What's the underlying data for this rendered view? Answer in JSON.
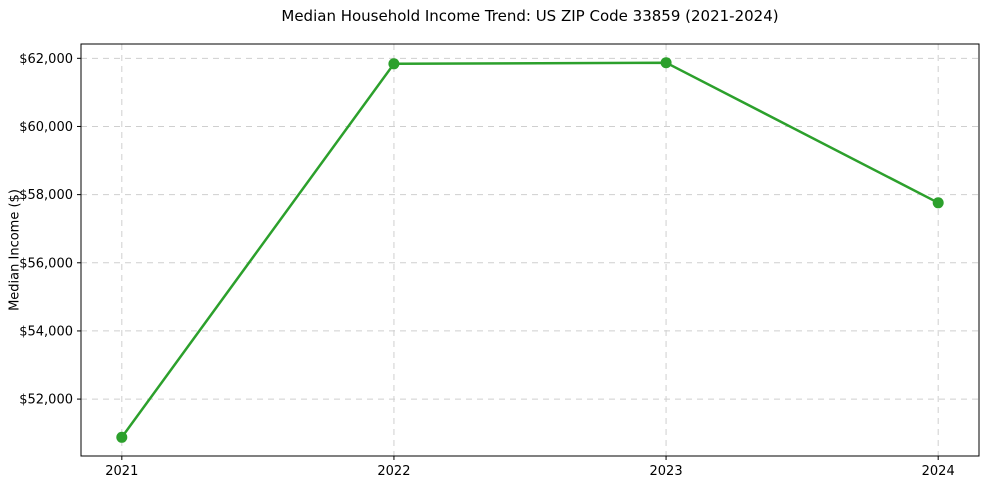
{
  "chart_data": {
    "type": "line",
    "title": "Median Household Income Trend: US ZIP Code 33859 (2021-2024)",
    "xlabel": "",
    "ylabel": "Median Income ($)",
    "categories": [
      "2021",
      "2022",
      "2023",
      "2024"
    ],
    "series": [
      {
        "name": "Median Household Income",
        "values": [
          50880,
          61840,
          61870,
          57760
        ],
        "color": "#2ca02c",
        "marker": "circle"
      }
    ],
    "ylim": [
      50330,
      62420
    ],
    "yticks": [
      52000,
      54000,
      56000,
      58000,
      60000,
      62000
    ],
    "ytick_labels": [
      "$52,000",
      "$54,000",
      "$56,000",
      "$58,000",
      "$60,000",
      "$62,000"
    ],
    "grid": true,
    "grid_style": "dashed",
    "grid_color": "#cfcfcf",
    "axis_color": "#000000",
    "background": "#ffffff",
    "legend": "none"
  }
}
